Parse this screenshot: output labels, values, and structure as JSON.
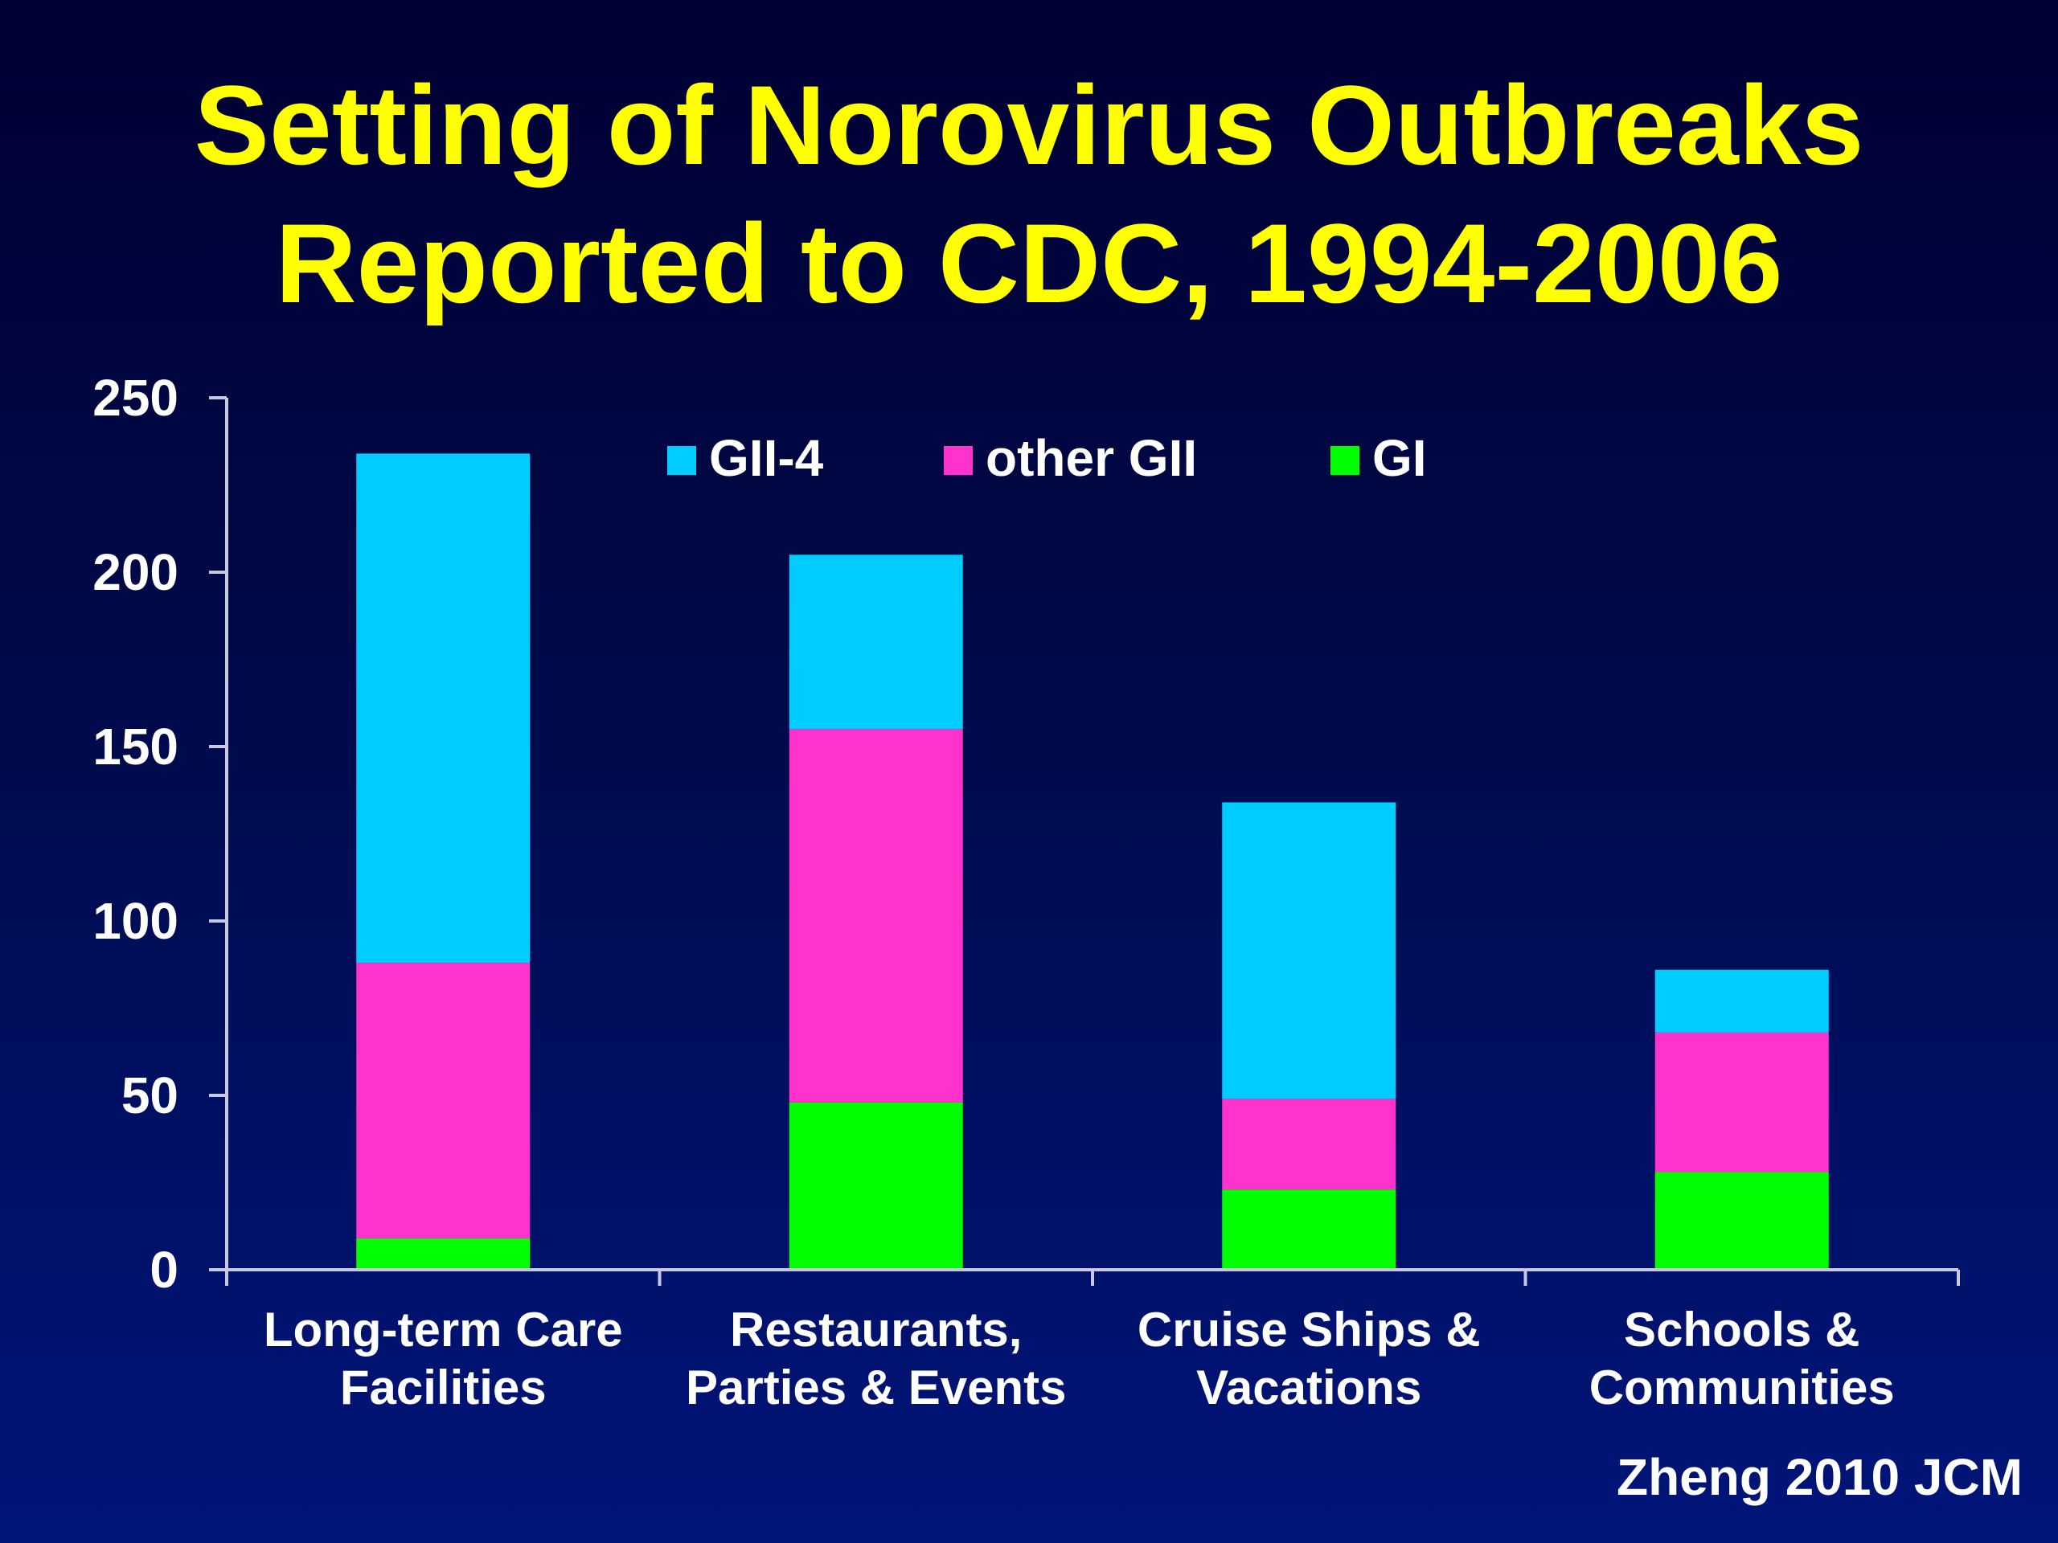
{
  "colors": {
    "background": "#000a4a",
    "title": "#ffff00",
    "text": "#ffffff",
    "axis": "#c8c8e0"
  },
  "title_lines": [
    "Setting of Norovirus Outbreaks",
    "Reported to CDC, 1994-2006"
  ],
  "source": "Zheng 2010 JCM",
  "chart_data": {
    "type": "bar",
    "stacked": true,
    "title": "Setting of Norovirus Outbreaks Reported to CDC, 1994-2006",
    "xlabel": "",
    "ylabel": "",
    "ylim": [
      0,
      250
    ],
    "yticks": [
      0,
      50,
      100,
      150,
      200,
      250
    ],
    "grid": false,
    "legend_position": "top-center",
    "categories": [
      [
        "Long-term Care",
        "Facilities"
      ],
      [
        "Restaurants,",
        "Parties & Events"
      ],
      [
        "Cruise Ships &",
        "Vacations"
      ],
      [
        "Schools &",
        "Communities"
      ]
    ],
    "legend_order": [
      "GII-4",
      "other GII",
      "GI"
    ],
    "series": [
      {
        "name": "GI",
        "color": "#00ff00",
        "values": [
          9,
          48,
          23,
          28
        ]
      },
      {
        "name": "other GII",
        "color": "#ff33cc",
        "values": [
          79,
          107,
          26,
          40
        ]
      },
      {
        "name": "GII-4",
        "color": "#00ccff",
        "values": [
          146,
          50,
          85,
          18
        ]
      }
    ]
  }
}
